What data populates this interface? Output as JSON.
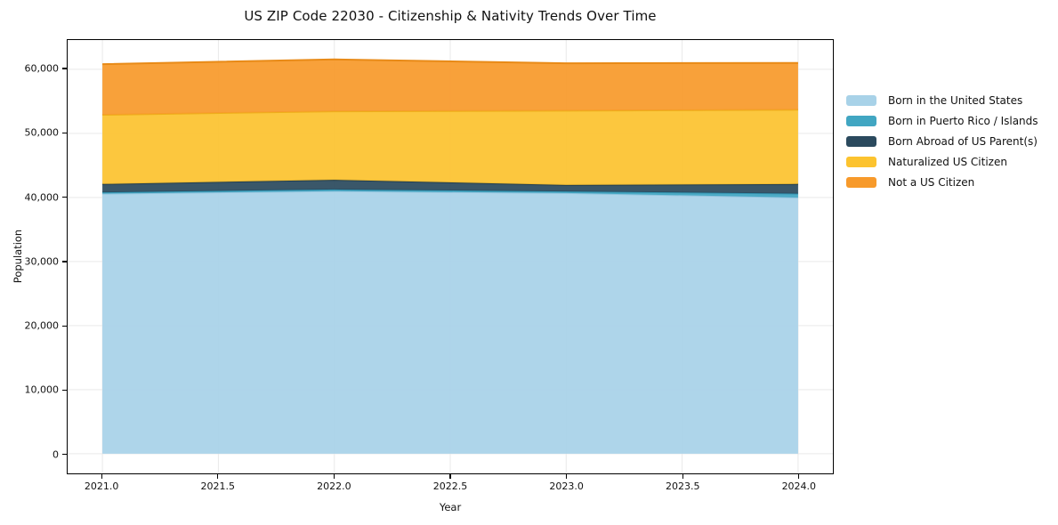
{
  "title": "US ZIP Code 22030 - Citizenship & Nativity Trends Over Time",
  "chart_data": {
    "type": "area",
    "stacked": true,
    "title": "US ZIP Code 22030 - Citizenship & Nativity Trends Over Time",
    "xlabel": "Year",
    "ylabel": "Population",
    "x": [
      2021,
      2022,
      2023,
      2024
    ],
    "xlim": [
      2020.85,
      2024.15
    ],
    "ylim": [
      -3075,
      64575
    ],
    "xticks": [
      2021.0,
      2021.5,
      2022.0,
      2022.5,
      2023.0,
      2023.5,
      2024.0
    ],
    "xtick_labels": [
      "2021.0",
      "2021.5",
      "2022.0",
      "2022.5",
      "2023.0",
      "2023.5",
      "2024.0"
    ],
    "yticks": [
      0,
      10000,
      20000,
      30000,
      40000,
      50000,
      60000
    ],
    "ytick_labels": [
      "0",
      "10,000",
      "20,000",
      "30,000",
      "40,000",
      "50,000",
      "60,000"
    ],
    "grid": true,
    "grid_color": "#e9e9e9",
    "legend_position": "right",
    "series": [
      {
        "name": "Born in the United States",
        "color": "#a8d2e8",
        "edge_color": "#8fc3dd",
        "values": [
          40600,
          41000,
          40700,
          40000
        ]
      },
      {
        "name": "Born in Puerto Rico / Islands",
        "color": "#41a6c2",
        "edge_color": "#3494b1",
        "values": [
          200,
          250,
          250,
          600
        ]
      },
      {
        "name": "Born Abroad of US Parent(s)",
        "color": "#2b4a5e",
        "edge_color": "#233f50",
        "values": [
          1300,
          1500,
          1000,
          1500
        ]
      },
      {
        "name": "Naturalized US Citizen",
        "color": "#fcc32f",
        "edge_color": "#eeb01b",
        "values": [
          10800,
          10700,
          11600,
          11600
        ]
      },
      {
        "name": "Not a US Citizen",
        "color": "#f79a2b",
        "edge_color": "#e88a17",
        "values": [
          7900,
          8100,
          7400,
          7300
        ]
      }
    ],
    "totals": [
      60800,
      61550,
      60950,
      61000
    ]
  }
}
